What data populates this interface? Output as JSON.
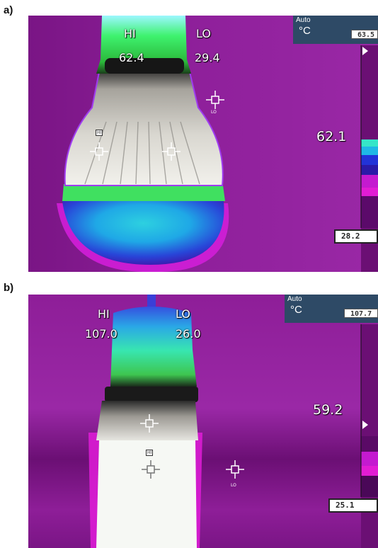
{
  "panels": [
    {
      "letter": "a)",
      "hi_label": "HI",
      "hi_value": "62.4",
      "lo_label": "LO",
      "lo_value": "29.4",
      "center_value": "62.1",
      "auto_label": "Auto",
      "unit": "°C",
      "scale_max": "63.5",
      "scale_min": "28.2",
      "marker_hi": "HI",
      "marker_lo": "LO"
    },
    {
      "letter": "b)",
      "hi_label": "HI",
      "hi_value": "107.0",
      "lo_label": "LO",
      "lo_value": "26.0",
      "center_value": "59.2",
      "auto_label": "Auto",
      "unit": "°C",
      "scale_max": "107.7",
      "scale_min": "25.1",
      "marker_hi": "HI",
      "marker_lo": "LO"
    }
  ],
  "colors": {
    "background_purple": "#8a1d93",
    "hot_white": "#f2f6f2",
    "warm_green": "#4ef07a",
    "cyan": "#33d6e6",
    "blue": "#2236d4",
    "magenta": "#e21cd4",
    "panel_header": "#2e4a66"
  }
}
